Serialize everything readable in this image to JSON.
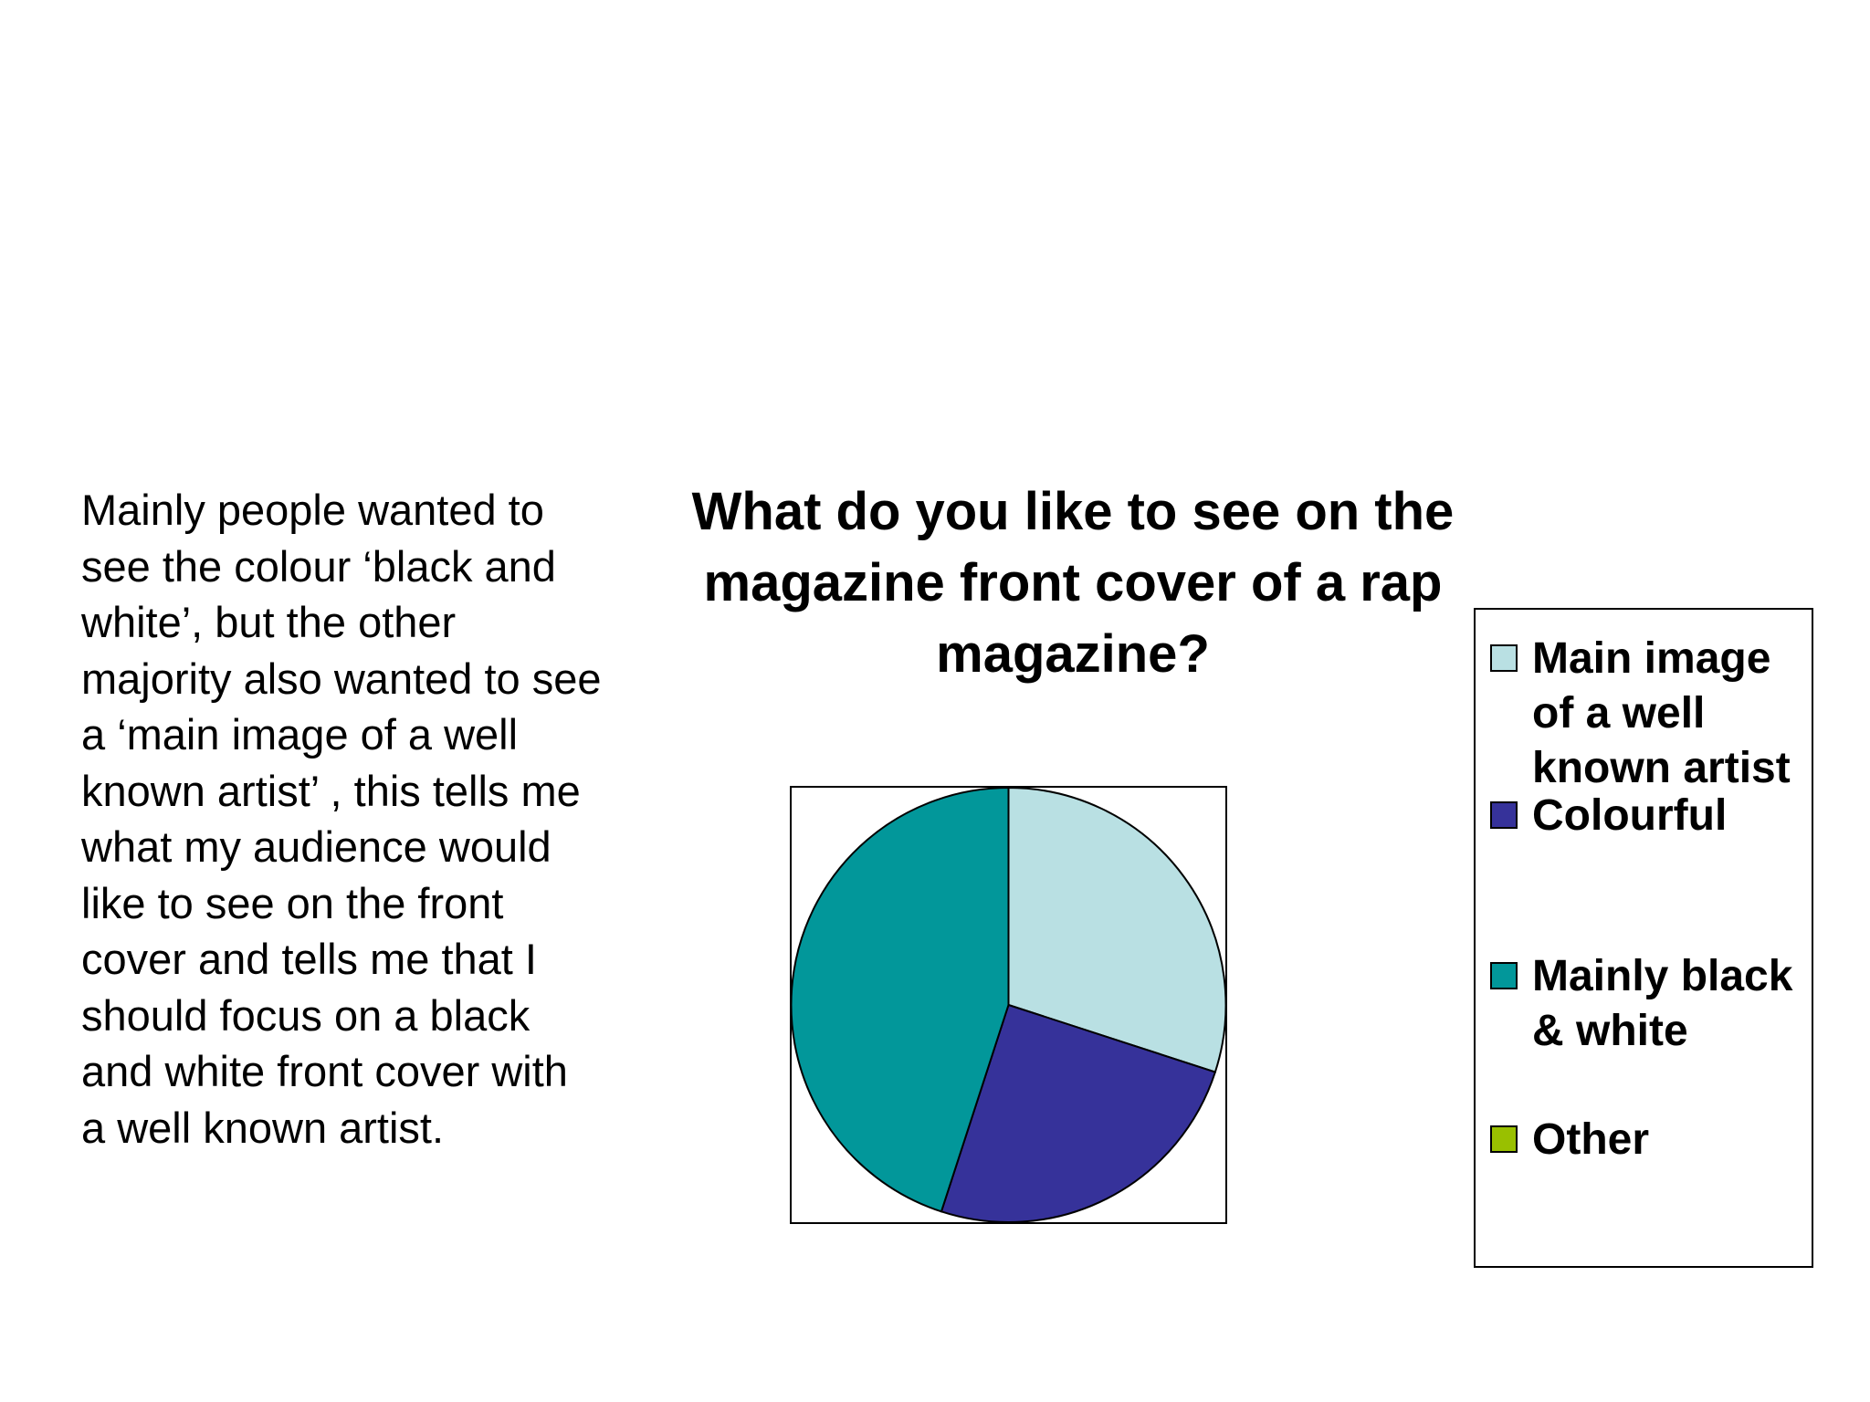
{
  "body_text": "Mainly people wanted to see the colour ‘black and white’, but the other majority also wanted to see a ‘main image of a well known artist’ , this tells me what my audience would like to see on the front cover and tells me that I should focus on a black and white front cover with a well known artist.",
  "chart_data": {
    "type": "pie",
    "title": "What do you like to see on the magazine front cover of a rap magazine?",
    "categories": [
      "Main image of a well known artist",
      "Colourful",
      "Mainly black & white",
      "Other"
    ],
    "values": [
      30,
      25,
      45,
      0
    ],
    "colors": [
      "#b9e0e3",
      "#36329a",
      "#02979a",
      "#99c000"
    ],
    "legend": "right"
  }
}
